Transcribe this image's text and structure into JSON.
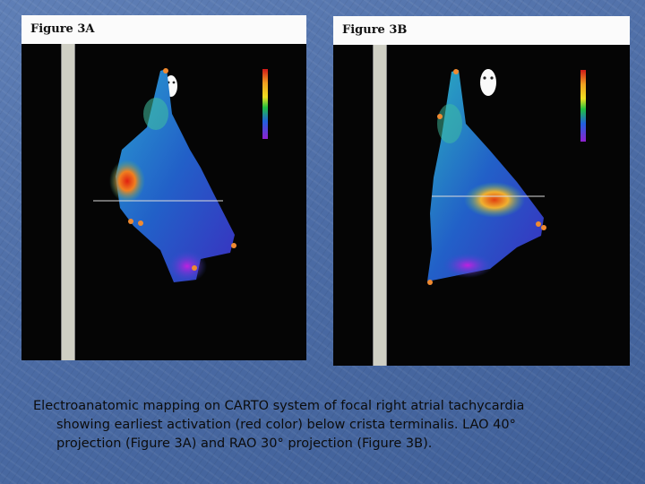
{
  "figures": [
    {
      "label": "Figure 3A"
    },
    {
      "label": "Figure 3B"
    }
  ],
  "caption": {
    "line1": "Electroanatomic mapping on CARTO system of focal right atrial tachycardia",
    "line2": "showing earliest activation (red color) below crista terminalis. LAO 40°",
    "line3": "projection (Figure 3A) and RAO 30° projection (Figure 3B)."
  },
  "colors": {
    "background": "#4f6fa8",
    "early_activation": "#e02010",
    "late_activation": "#8a1ccf"
  }
}
